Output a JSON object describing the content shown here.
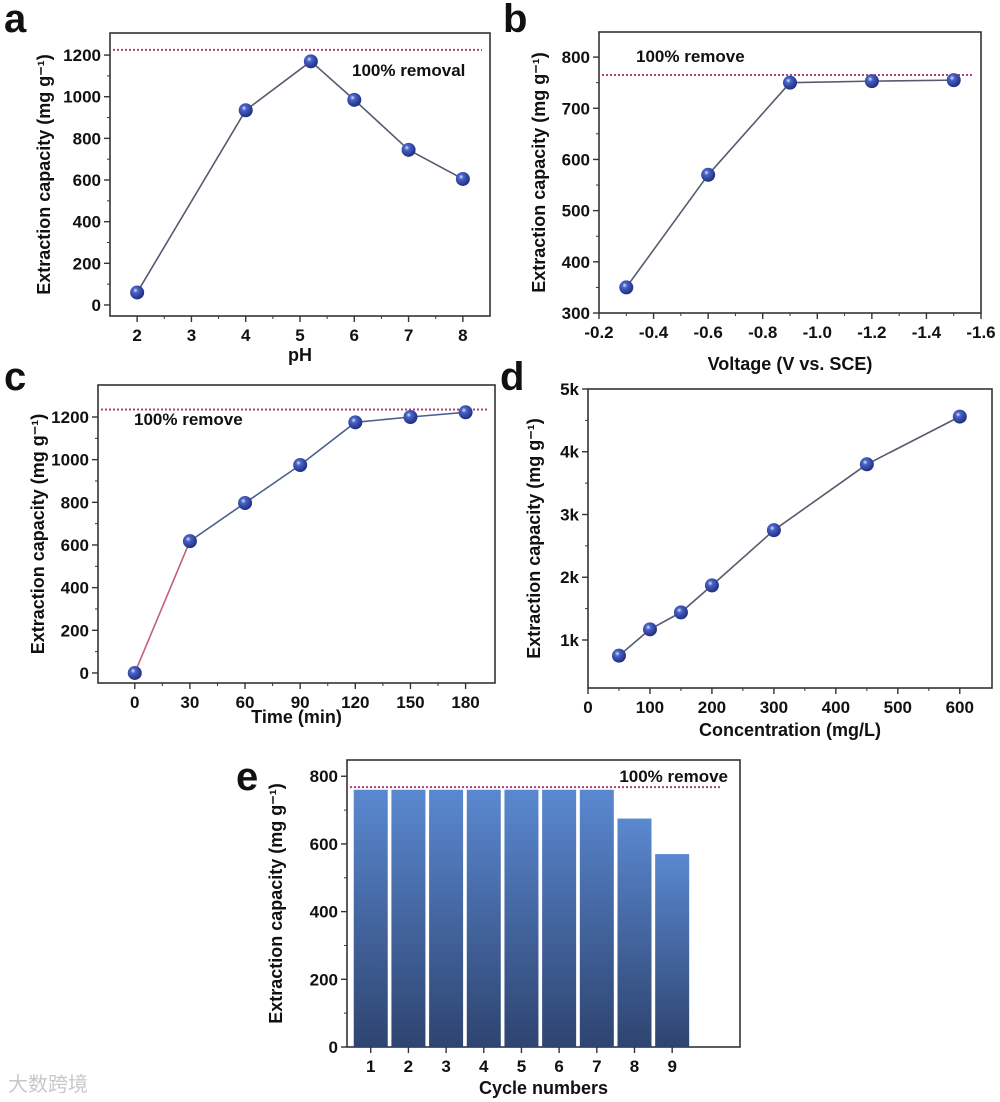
{
  "chart_data": [
    {
      "panel": "a",
      "type": "line",
      "xlabel": "pH",
      "ylabel": "Extraction capacity (mg g⁻¹)",
      "x": [
        2,
        4,
        5.2,
        6,
        7,
        8
      ],
      "values": [
        60,
        935,
        1170,
        985,
        745,
        605
      ],
      "xlim": [
        1.5,
        8.5
      ],
      "ylim": [
        -53,
        1306
      ],
      "xticks": [
        2,
        3,
        4,
        5,
        6,
        7,
        8
      ],
      "yticks": [
        0,
        200,
        400,
        600,
        800,
        1000,
        1200
      ],
      "reference_line": {
        "value": 1225,
        "label": "100% removal"
      },
      "colors": {
        "line": "#555a6e",
        "marker": "#2a3f9a",
        "reference": "#b0407a"
      }
    },
    {
      "panel": "b",
      "type": "line",
      "xlabel": "Voltage (V vs. SCE)",
      "ylabel": "Extraction capacity (mg g⁻¹)",
      "x": [
        -0.3,
        -0.6,
        -0.9,
        -1.2,
        -1.5
      ],
      "values": [
        350,
        570,
        750,
        753,
        755
      ],
      "xlim": [
        -0.2,
        -1.6
      ],
      "ylim": [
        300,
        849
      ],
      "xticks": [
        -0.2,
        -0.4,
        -0.6,
        -0.8,
        -1.0,
        -1.2,
        -1.4,
        -1.6
      ],
      "xtick_labels": [
        "-0.2",
        "-0.4",
        "-0.6",
        "-0.8",
        "-1.0",
        "-1.2",
        "-1.4",
        "-1.6"
      ],
      "yticks": [
        300,
        400,
        500,
        600,
        700,
        800
      ],
      "reference_line": {
        "value": 765,
        "label": "100% remove"
      },
      "colors": {
        "line": "#555a6e",
        "marker": "#2a3f9a",
        "reference": "#b0407a"
      }
    },
    {
      "panel": "c",
      "type": "line",
      "xlabel": "Time (min)",
      "ylabel": "Extraction capacity (mg g⁻¹)",
      "x": [
        0,
        30,
        60,
        90,
        120,
        150,
        180
      ],
      "values": [
        0,
        618,
        797,
        975,
        1175,
        1200,
        1222
      ],
      "xlim": [
        -20,
        196
      ],
      "ylim": [
        -47,
        1350
      ],
      "xticks": [
        0,
        30,
        60,
        90,
        120,
        150,
        180
      ],
      "yticks": [
        0,
        200,
        400,
        600,
        800,
        1000,
        1200
      ],
      "reference_line": {
        "value": 1235,
        "label": "100% remove"
      },
      "colors": {
        "line": "#4a5f8e",
        "first_segment": "#c4607a",
        "marker": "#2a3f9a",
        "reference": "#b0407a"
      }
    },
    {
      "panel": "d",
      "type": "line",
      "xlabel": "Concentration (mg/L)",
      "ylabel": "Extraction capacity (mg g⁻¹)",
      "x": [
        50,
        100,
        150,
        200,
        300,
        450,
        600
      ],
      "values": [
        750,
        1170,
        1440,
        1870,
        2750,
        3800,
        4560
      ],
      "xlim": [
        0,
        652
      ],
      "ylim": [
        235,
        5000
      ],
      "xticks": [
        0,
        100,
        200,
        300,
        400,
        500,
        600
      ],
      "yticks": [
        1000,
        2000,
        3000,
        4000,
        5000
      ],
      "ytick_labels": [
        "1k",
        "2k",
        "3k",
        "4k",
        "5k"
      ],
      "colors": {
        "line": "#555a6e",
        "marker": "#2a3f9a"
      }
    },
    {
      "panel": "e",
      "type": "bar",
      "xlabel": "Cycle numbers",
      "ylabel": "Extraction capacity (mg g⁻¹)",
      "categories": [
        "1",
        "2",
        "3",
        "4",
        "5",
        "6",
        "7",
        "8",
        "9"
      ],
      "values": [
        760,
        760,
        760,
        760,
        760,
        760,
        760,
        675,
        570
      ],
      "xlim": [
        0.37,
        10.8
      ],
      "ylim": [
        0,
        848
      ],
      "yticks": [
        0,
        200,
        400,
        600,
        800
      ],
      "reference_line": {
        "value": 768,
        "label": "100% remove"
      },
      "colors": {
        "bar_top": "#5a88d0",
        "bar_bottom": "#2e4470",
        "reference": "#b0407a"
      }
    }
  ],
  "watermark": "大数跨境"
}
